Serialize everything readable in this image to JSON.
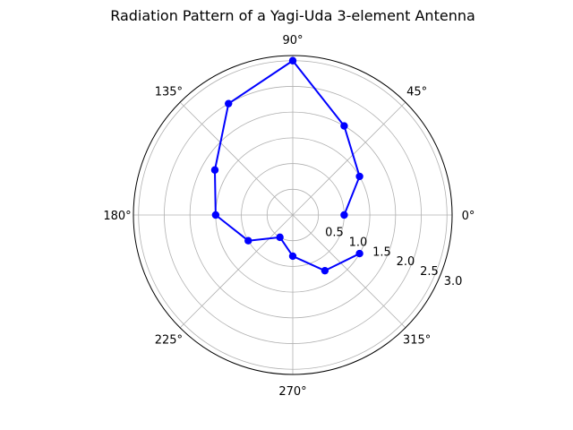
{
  "chart_data": {
    "type": "polar-line",
    "title": "Radiation Pattern of a Yagi-Uda 3-element Antenna",
    "angle_unit": "degrees",
    "angle_ticks": [
      0,
      45,
      90,
      135,
      180,
      225,
      270,
      315
    ],
    "angle_tick_labels": [
      "0°",
      "45°",
      "90°",
      "135°",
      "180°",
      "225°",
      "270°",
      "315°"
    ],
    "radial_ticks": [
      0.5,
      1.0,
      1.5,
      2.0,
      2.5,
      3.0
    ],
    "radial_tick_labels": [
      "0.5",
      "1.0",
      "1.5",
      "2.0",
      "2.5",
      "3.0"
    ],
    "rlim": [
      0,
      3.1
    ],
    "grid": true,
    "series": [
      {
        "color": "#0000ff",
        "marker": "circle",
        "theta": [
          0,
          30,
          60,
          90,
          120,
          150,
          180,
          210,
          240,
          270,
          300,
          330
        ],
        "r": [
          1.0,
          1.5,
          2.0,
          3.0,
          2.5,
          1.75,
          1.5,
          1.0,
          0.5,
          0.8,
          1.25,
          1.5
        ]
      }
    ]
  }
}
